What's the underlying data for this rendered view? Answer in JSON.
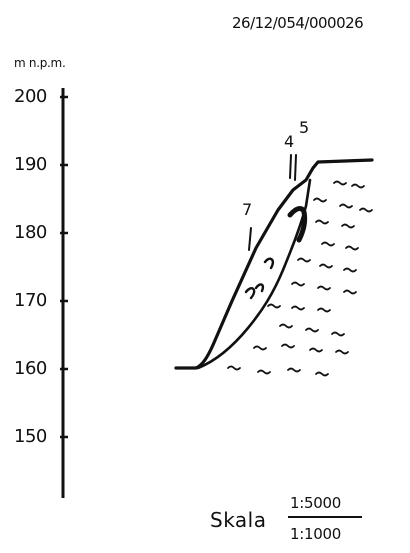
{
  "header": {
    "doc_id": "26/12/054/000026"
  },
  "axis": {
    "unit": "m n.p.m.",
    "ticks": [
      "200",
      "190",
      "180",
      "170",
      "160",
      "150"
    ]
  },
  "markers": [
    "5",
    "4",
    "7"
  ],
  "scale": {
    "label": "Skala",
    "numerator": "1:5000",
    "denominator": "1:1000"
  },
  "colors": {
    "ink": "#111111",
    "paper": "#ffffff"
  }
}
